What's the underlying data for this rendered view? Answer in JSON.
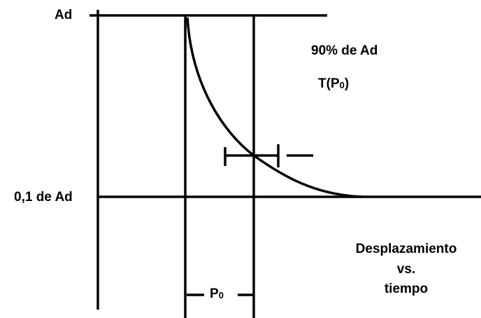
{
  "labels": {
    "ad": "Ad",
    "tenth": "0,1 de Ad",
    "ninety": "90% de Ad",
    "t_p0": {
      "base": "T(P",
      "sub": "0",
      "end": ")"
    },
    "p0": {
      "base": "P",
      "sub": "0"
    },
    "caption": [
      "Desplazamiento",
      "vs.",
      "tiempo"
    ]
  }
}
